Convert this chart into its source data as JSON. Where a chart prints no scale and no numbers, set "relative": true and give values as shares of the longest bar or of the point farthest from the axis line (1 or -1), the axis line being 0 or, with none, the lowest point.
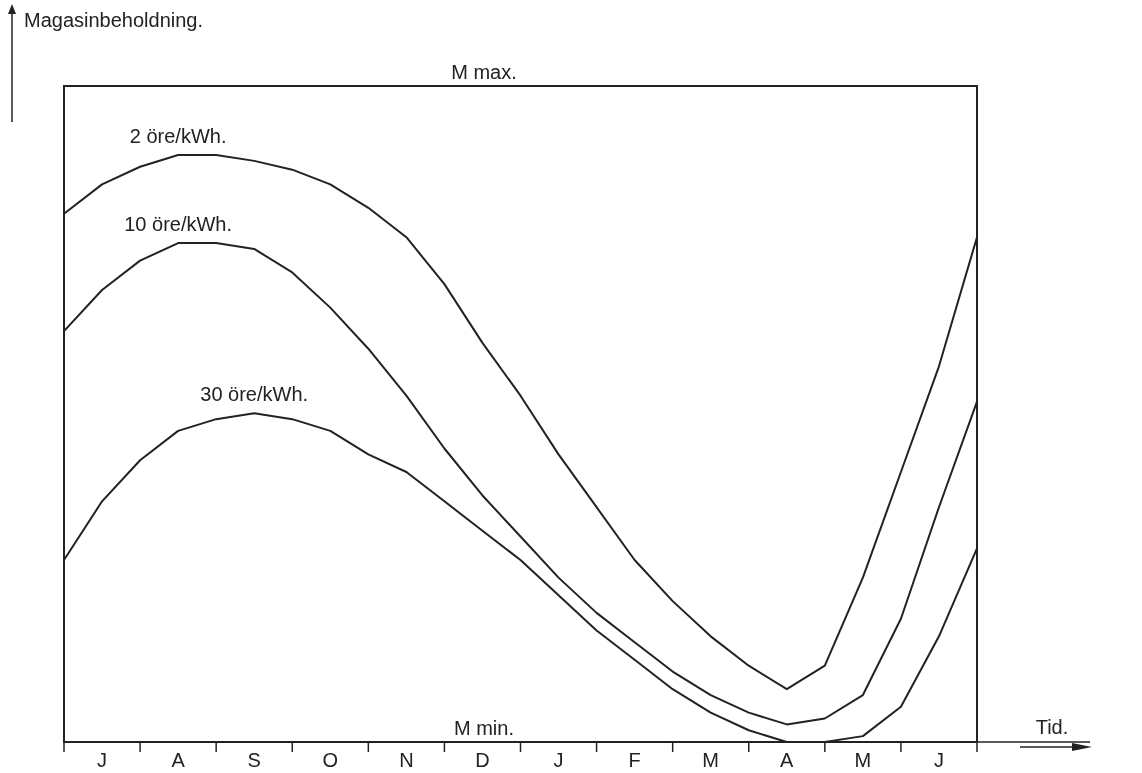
{
  "chart_data": {
    "type": "line",
    "relative": true,
    "xlabel": "Tid.",
    "categories": [
      null,
      "J",
      null,
      "A",
      null,
      "S",
      null,
      "O",
      null,
      "N",
      null,
      "D",
      null,
      "J",
      null,
      "F",
      null,
      "M",
      null,
      "A",
      null,
      "M",
      null,
      "J",
      null
    ],
    "annotations": [
      "M max.",
      "M min.",
      "Magasinbeholdning."
    ],
    "line_style": "solid",
    "marker": "none",
    "series": [
      {
        "name": "2 öre/kWh.",
        "color": "#222222",
        "values": [
          0.9,
          0.95,
          0.98,
          1.0,
          1.0,
          0.99,
          0.975,
          0.95,
          0.91,
          0.86,
          0.78,
          0.68,
          0.59,
          0.49,
          0.4,
          0.31,
          0.24,
          0.18,
          0.13,
          0.09,
          0.13,
          0.28,
          0.46,
          0.64,
          0.86
        ]
      },
      {
        "name": "10 öre/kWh.",
        "color": "#222222",
        "values": [
          0.7,
          0.77,
          0.82,
          0.85,
          0.85,
          0.84,
          0.8,
          0.74,
          0.67,
          0.59,
          0.5,
          0.42,
          0.35,
          0.28,
          0.22,
          0.17,
          0.12,
          0.08,
          0.05,
          0.03,
          0.04,
          0.08,
          0.21,
          0.4,
          0.58
        ]
      },
      {
        "name": "30 öre/kWh.",
        "color": "#222222",
        "values": [
          0.31,
          0.41,
          0.48,
          0.53,
          0.55,
          0.56,
          0.55,
          0.53,
          0.49,
          0.46,
          0.41,
          0.36,
          0.31,
          0.25,
          0.19,
          0.14,
          0.09,
          0.05,
          0.02,
          0,
          0,
          0.01,
          0.06,
          0.18,
          0.33
        ]
      }
    ]
  }
}
